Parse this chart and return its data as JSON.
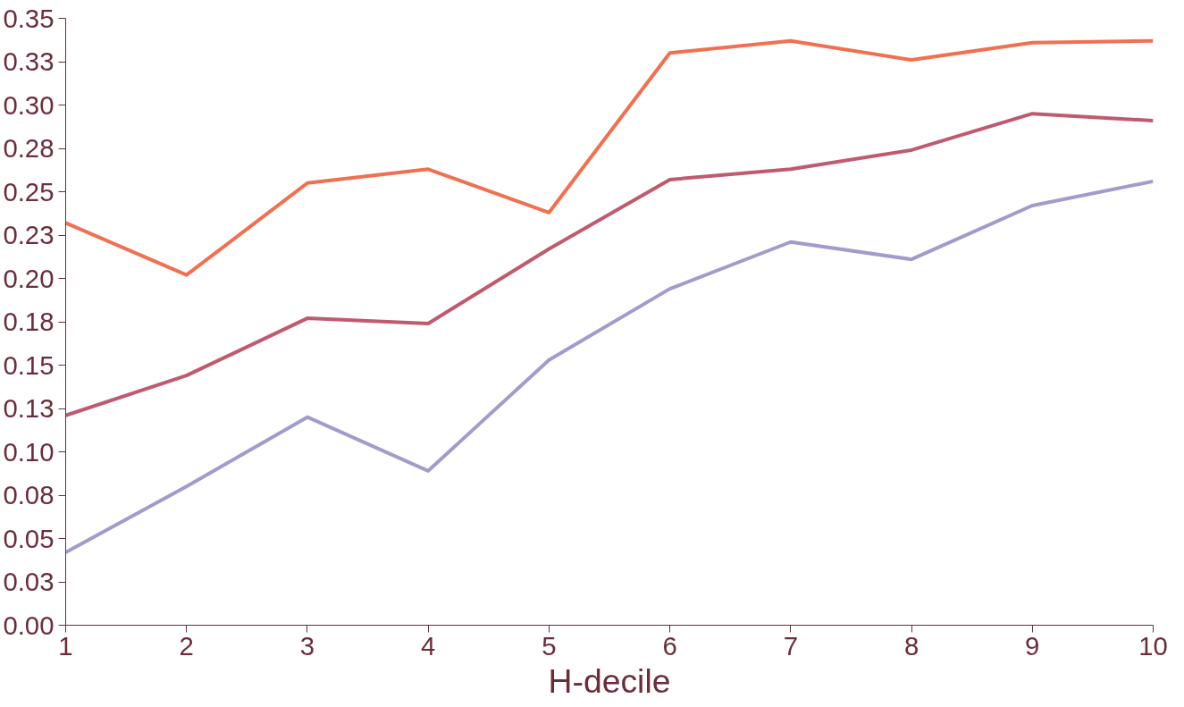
{
  "chart_data": {
    "type": "line",
    "xlabel": "H-decile",
    "x": [
      1,
      2,
      3,
      4,
      5,
      6,
      7,
      8,
      9,
      10
    ],
    "series": [
      {
        "color": "#f07050",
        "values": [
          0.232,
          0.202,
          0.255,
          0.263,
          0.238,
          0.33,
          0.337,
          0.326,
          0.336,
          0.337
        ]
      },
      {
        "color": "#c05a6e",
        "values": [
          0.121,
          0.144,
          0.177,
          0.174,
          0.217,
          0.257,
          0.263,
          0.274,
          0.295,
          0.291
        ]
      },
      {
        "color": "#a09ccc",
        "values": [
          0.042,
          0.08,
          0.12,
          0.089,
          0.153,
          0.194,
          0.221,
          0.211,
          0.242,
          0.256
        ]
      }
    ],
    "xlim": [
      1,
      10
    ],
    "ylim": [
      0,
      0.35
    ],
    "xticks": [
      1,
      2,
      3,
      4,
      5,
      6,
      7,
      8,
      9,
      10
    ],
    "yticks": [
      {
        "value": 0,
        "label": "0.00"
      },
      {
        "value": 0.025,
        "label": "0.03"
      },
      {
        "value": 0.05,
        "label": "0.05"
      },
      {
        "value": 0.075,
        "label": "0.08"
      },
      {
        "value": 0.1,
        "label": "0.10"
      },
      {
        "value": 0.125,
        "label": "0.13"
      },
      {
        "value": 0.15,
        "label": "0.15"
      },
      {
        "value": 0.175,
        "label": "0.18"
      },
      {
        "value": 0.2,
        "label": "0.20"
      },
      {
        "value": 0.225,
        "label": "0.23"
      },
      {
        "value": 0.25,
        "label": "0.25"
      },
      {
        "value": 0.275,
        "label": "0.28"
      },
      {
        "value": 0.3,
        "label": "0.30"
      },
      {
        "value": 0.325,
        "label": "0.33"
      },
      {
        "value": 0.35,
        "label": "0.35"
      }
    ],
    "grid": false,
    "marker": "none",
    "line_style": "solid"
  }
}
